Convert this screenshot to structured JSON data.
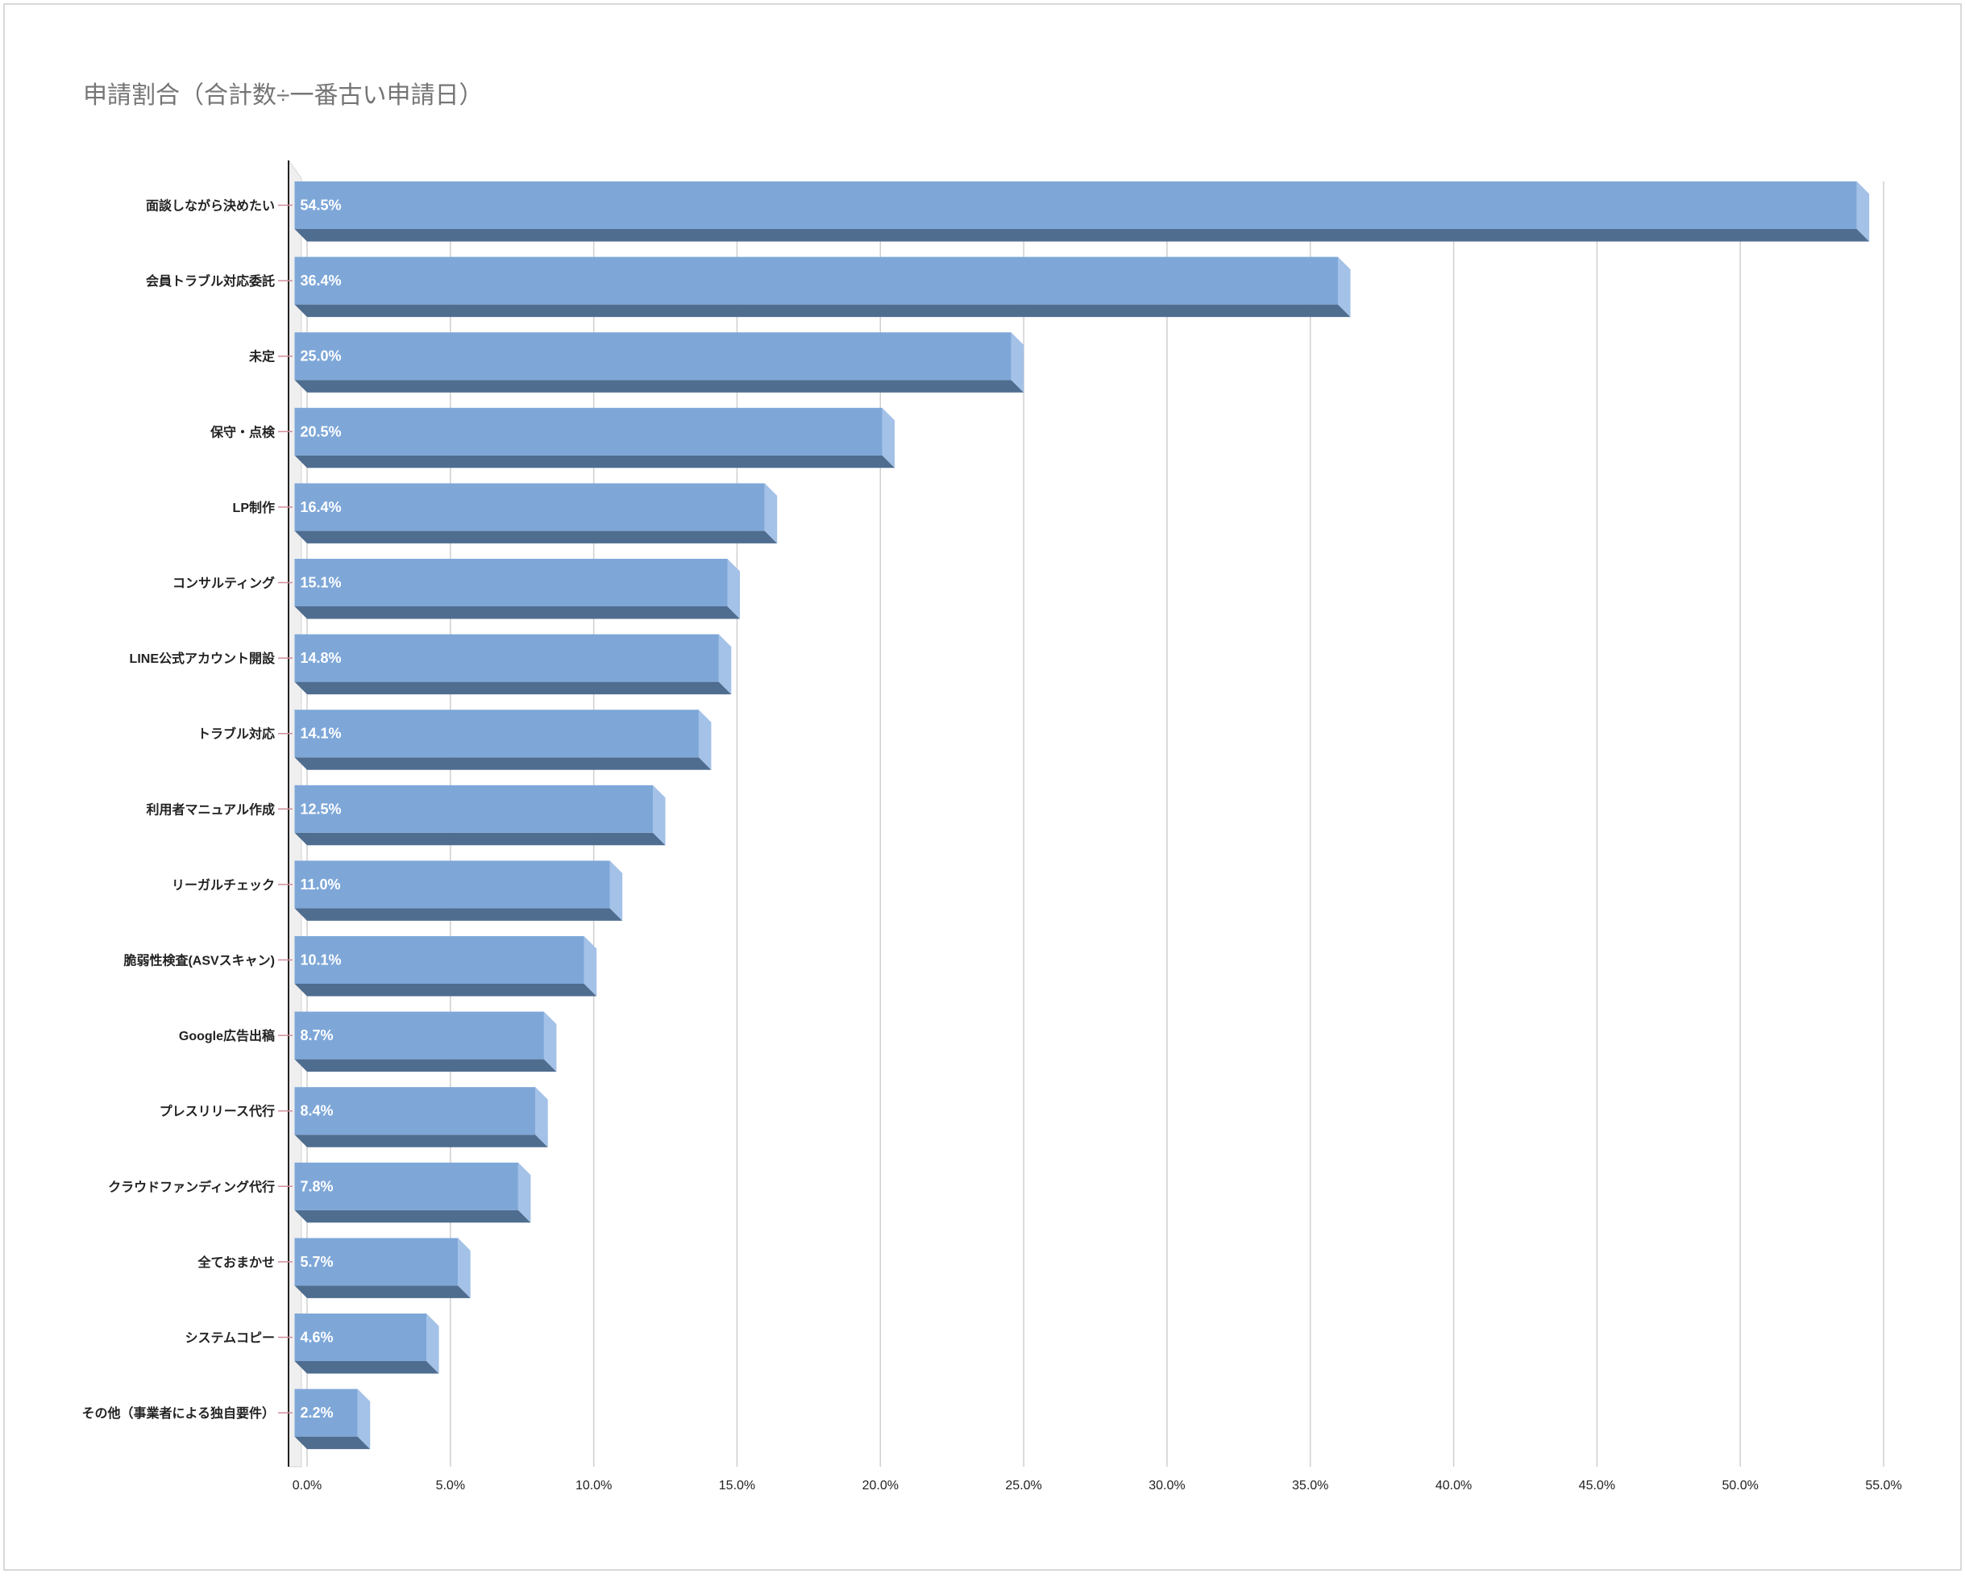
{
  "chart_data": {
    "type": "bar",
    "orientation": "horizontal",
    "style": "3d",
    "title": "申請割合（合計数÷一番古い申請日）",
    "xlabel": "",
    "ylabel": "",
    "categories": [
      "面談しながら決めたい",
      "会員トラブル対応委託",
      "未定",
      "保守・点検",
      "LP制作",
      "コンサルティング",
      "LINE公式アカウント開設",
      "トラブル対応",
      "利用者マニュアル作成",
      "リーガルチェック",
      "脆弱性検査(ASVスキャン)",
      "Google広告出稿",
      "プレスリリース代行",
      "クラウドファンディング代行",
      "全ておまかせ",
      "システムコピー",
      "その他（事業者による独自要件）"
    ],
    "values": [
      54.5,
      36.4,
      25.0,
      20.5,
      16.4,
      15.1,
      14.8,
      14.1,
      12.5,
      11.0,
      10.1,
      8.7,
      8.4,
      7.8,
      5.7,
      4.6,
      2.2
    ],
    "value_labels": [
      "54.5%",
      "36.4%",
      "25.0%",
      "20.5%",
      "16.4%",
      "15.1%",
      "14.8%",
      "14.1%",
      "12.5%",
      "11.0%",
      "10.1%",
      "8.7%",
      "8.4%",
      "7.8%",
      "5.7%",
      "4.6%",
      "2.2%"
    ],
    "xlim": [
      0,
      55
    ],
    "x_ticks": [
      0,
      5,
      10,
      15,
      20,
      25,
      30,
      35,
      40,
      45,
      50,
      55
    ],
    "x_tick_labels": [
      "0.0%",
      "5.0%",
      "10.0%",
      "15.0%",
      "20.0%",
      "25.0%",
      "30.0%",
      "35.0%",
      "40.0%",
      "45.0%",
      "50.0%",
      "55.0%"
    ],
    "grid": "vertical",
    "legend": "none",
    "colors": {
      "bar_front": "#7ea7d8",
      "bar_side": "#a4c1e7",
      "bar_bottom": "#4f6d8f",
      "gridline": "#cfcfcf",
      "category_tick": "#cf8c9a",
      "back_wall": "#efefef",
      "axis": "#222222",
      "border": "#d9d9d9"
    }
  }
}
